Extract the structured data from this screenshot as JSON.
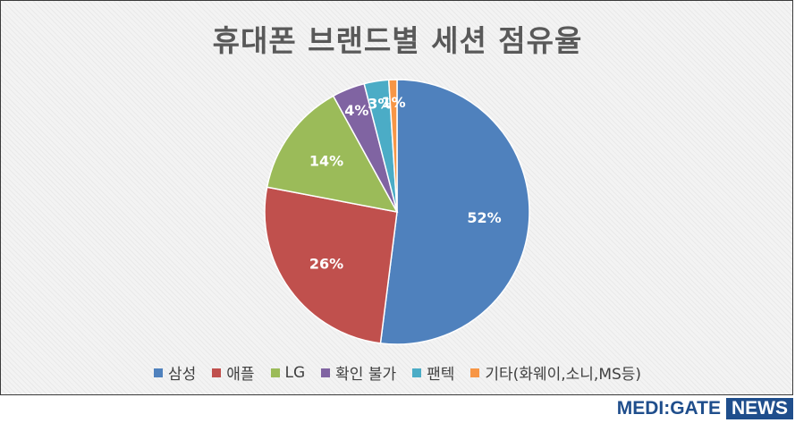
{
  "chart_data": {
    "type": "pie",
    "title": "휴대폰 브랜드별 세션 점유율",
    "categories": [
      "삼성",
      "애플",
      "LG",
      "확인 불가",
      "팬텍",
      "기타(화웨이,소니,MS등)"
    ],
    "values": [
      52,
      26,
      14,
      4,
      3,
      1
    ],
    "labels": [
      "52%",
      "26%",
      "14%",
      "4%",
      "3%",
      "1%"
    ],
    "colors": [
      "#4f81bd",
      "#c0504d",
      "#9bbb59",
      "#8064a2",
      "#4bacc6",
      "#f79646"
    ],
    "legend_position": "bottom"
  },
  "brand": {
    "main": "MEDI:GATE",
    "news": "NEWS"
  }
}
